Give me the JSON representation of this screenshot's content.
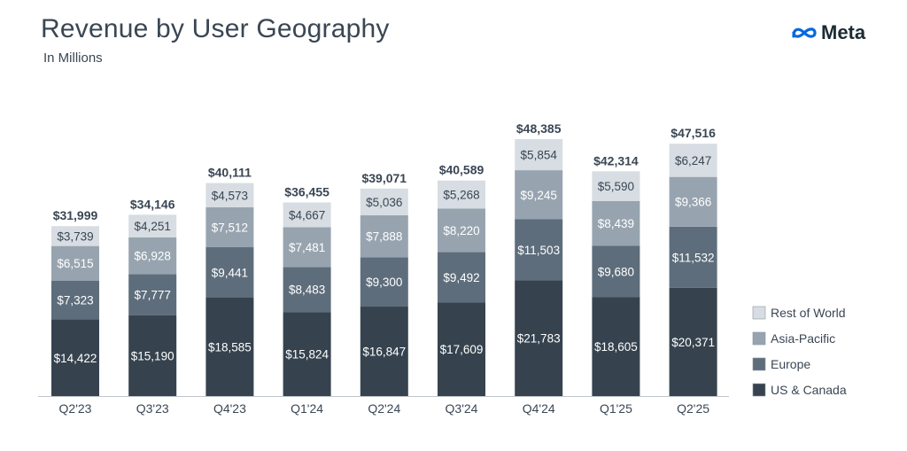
{
  "header": {
    "title": "Revenue by User Geography",
    "subtitle": "In Millions",
    "brand": "Meta",
    "brand_color": "#0668e1"
  },
  "chart_data": {
    "type": "bar",
    "stacked": true,
    "title": "Revenue by User Geography",
    "subtitle": "In Millions",
    "categories": [
      "Q2'23",
      "Q3'23",
      "Q4'23",
      "Q1'24",
      "Q2'24",
      "Q3'24",
      "Q4'24",
      "Q1'25",
      "Q2'25"
    ],
    "series": [
      {
        "name": "US & Canada",
        "color": "#36434f",
        "text_color": "#ffffff",
        "values": [
          14422,
          15190,
          18585,
          15824,
          16847,
          17609,
          21783,
          18605,
          20371
        ],
        "labels": [
          "$14,422",
          "$15,190",
          "$18,585",
          "$15,824",
          "$16,847",
          "$17,609",
          "$21,783",
          "$18,605",
          "$20,371"
        ]
      },
      {
        "name": "Europe",
        "color": "#5e6d7b",
        "text_color": "#ffffff",
        "values": [
          7323,
          7777,
          9441,
          8483,
          9300,
          9492,
          11503,
          9680,
          11532
        ],
        "labels": [
          "$7,323",
          "$7,777",
          "$9,441",
          "$8,483",
          "$9,300",
          "$9,492",
          "$11,503",
          "$9,680",
          "$11,532"
        ]
      },
      {
        "name": "Asia-Pacific",
        "color": "#97a4b0",
        "text_color": "#ffffff",
        "values": [
          6515,
          6928,
          7512,
          7481,
          7888,
          8220,
          9245,
          8439,
          9366
        ],
        "labels": [
          "$6,515",
          "$6,928",
          "$7,512",
          "$7,481",
          "$7,888",
          "$8,220",
          "$9,245",
          "$8,439",
          "$9,366"
        ]
      },
      {
        "name": "Rest of World",
        "color": "#d7dde2",
        "text_color": "#3a4654",
        "values": [
          3739,
          4251,
          4573,
          4667,
          5036,
          5268,
          5854,
          5590,
          6247
        ],
        "labels": [
          "$3,739",
          "$4,251",
          "$4,573",
          "$4,667",
          "$5,036",
          "$5,268",
          "$5,854",
          "$5,590",
          "$6,247"
        ]
      }
    ],
    "totals": [
      31999,
      34146,
      40111,
      36455,
      39071,
      40589,
      48385,
      42314,
      47516
    ],
    "total_labels": [
      "$31,999",
      "$34,146",
      "$40,111",
      "$36,455",
      "$39,071",
      "$40,589",
      "$48,385",
      "$42,314",
      "$47,516"
    ],
    "legend_order": [
      "Rest of World",
      "Asia-Pacific",
      "Europe",
      "US & Canada"
    ],
    "legend_position": "right",
    "ylim": [
      0,
      48385
    ],
    "grid": false,
    "axis_color": "#bfc6cc",
    "label_color": "#3a4654"
  }
}
